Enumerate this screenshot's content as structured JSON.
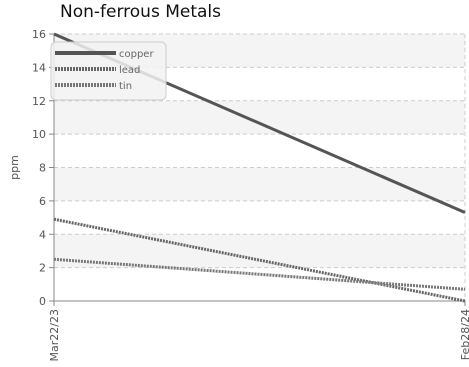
{
  "chart_data": {
    "type": "line",
    "title": "Non-ferrous Metals",
    "xlabel": "",
    "ylabel": "ppm",
    "x": [
      "Mar22/23",
      "Feb28/24"
    ],
    "ylim": [
      0,
      16
    ],
    "yticks": [
      0,
      2,
      4,
      6,
      8,
      10,
      12,
      14,
      16
    ],
    "grid": true,
    "legend_position": "top-left",
    "series": [
      {
        "name": "copper",
        "values": [
          16.0,
          5.3
        ],
        "color": "#555555",
        "style": "solid"
      },
      {
        "name": "lead",
        "values": [
          4.9,
          0.0
        ],
        "color": "#666666",
        "style": "dashed"
      },
      {
        "name": "tin",
        "values": [
          2.5,
          0.7
        ],
        "color": "#777777",
        "style": "dashed"
      }
    ]
  }
}
